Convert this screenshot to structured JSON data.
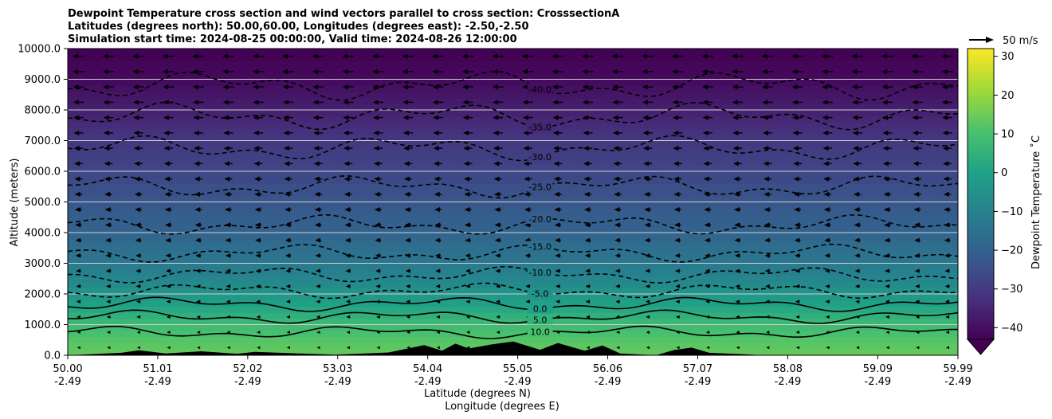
{
  "chart_data": {
    "type": "heatmap",
    "title_lines": [
      "Dewpoint Temperature cross section and wind vectors parallel to cross section: CrosssectionA",
      "Latitudes (degrees north): 50.00,60.00, Longitudes (degrees east): -2.50,-2.50",
      "Simulation start time: 2024-08-25 00:00:00, Valid time: 2024-08-26 12:00:00"
    ],
    "ylabel": "Altitude (meters)",
    "xlabel_lines": [
      "Latitude (degrees N)",
      "Longitude (degrees E)"
    ],
    "ylim": [
      0,
      10000
    ],
    "xlim": [
      50.0,
      59.99
    ],
    "y_ticks": [
      "0.0",
      "1000.0",
      "2000.0",
      "3000.0",
      "4000.0",
      "5000.0",
      "6000.0",
      "7000.0",
      "8000.0",
      "9000.0",
      "10000.0"
    ],
    "x_ticks": [
      {
        "value": 50.0,
        "lat": "50.00",
        "lon": "-2.49"
      },
      {
        "value": 51.01,
        "lat": "51.01",
        "lon": "-2.49"
      },
      {
        "value": 52.02,
        "lat": "52.02",
        "lon": "-2.49"
      },
      {
        "value": 53.03,
        "lat": "53.03",
        "lon": "-2.49"
      },
      {
        "value": 54.04,
        "lat": "54.04",
        "lon": "-2.49"
      },
      {
        "value": 55.05,
        "lat": "55.05",
        "lon": "-2.49"
      },
      {
        "value": 56.06,
        "lat": "56.06",
        "lon": "-2.49"
      },
      {
        "value": 57.07,
        "lat": "57.07",
        "lon": "-2.49"
      },
      {
        "value": 58.08,
        "lat": "58.08",
        "lon": "-2.49"
      },
      {
        "value": 59.09,
        "lat": "59.09",
        "lon": "-2.49"
      },
      {
        "value": 59.99,
        "lat": "59.99",
        "lon": "-2.49"
      }
    ],
    "grid": "horizontal",
    "colorbar": {
      "label": "Dewpoint Temperature ˚C",
      "range": [
        -43,
        32
      ],
      "ticks": [
        "−40",
        "−30",
        "−20",
        "−10",
        "0",
        "10",
        "20",
        "30"
      ],
      "tick_values": [
        -40,
        -30,
        -20,
        -10,
        0,
        10,
        20,
        30
      ],
      "extend": "min",
      "colors": [
        "#440154",
        "#46327e",
        "#365c8d",
        "#277f8e",
        "#1fa187",
        "#4ac16d",
        "#a0da39",
        "#fde725"
      ]
    },
    "quiver_key": {
      "label": "50 m/s",
      "speed": 50
    },
    "wind": {
      "direction": "southward (toward lower latitude)",
      "upper_speed": 25,
      "lower_speed": 5
    },
    "contours": [
      {
        "level": -40.0,
        "style": "dashed",
        "label": "-40.0"
      },
      {
        "level": -35.0,
        "style": "dashed",
        "label": "-35.0"
      },
      {
        "level": -30.0,
        "style": "dashed",
        "label": "-30.0"
      },
      {
        "level": -25.0,
        "style": "dashed",
        "label": "-25.0"
      },
      {
        "level": -20.0,
        "style": "dashed",
        "label": "-20.0"
      },
      {
        "level": -15.0,
        "style": "dashed",
        "label": "-15.0"
      },
      {
        "level": -10.0,
        "style": "dashed",
        "label": "-10.0"
      },
      {
        "level": -5.0,
        "style": "dashed",
        "label": "-5.0"
      },
      {
        "level": 0.0,
        "style": "solid",
        "label": "0.0"
      },
      {
        "level": 5.0,
        "style": "solid",
        "label": "5.0"
      },
      {
        "level": 10.0,
        "style": "solid",
        "label": "10.0"
      }
    ],
    "field_profile": [
      {
        "alt": 0,
        "dewpoint": 14
      },
      {
        "alt": 500,
        "dewpoint": 12
      },
      {
        "alt": 1000,
        "dewpoint": 8
      },
      {
        "alt": 1500,
        "dewpoint": 2
      },
      {
        "alt": 2000,
        "dewpoint": -4
      },
      {
        "alt": 2500,
        "dewpoint": -9
      },
      {
        "alt": 3000,
        "dewpoint": -13
      },
      {
        "alt": 3500,
        "dewpoint": -16
      },
      {
        "alt": 4000,
        "dewpoint": -19
      },
      {
        "alt": 5000,
        "dewpoint": -23
      },
      {
        "alt": 6000,
        "dewpoint": -27
      },
      {
        "alt": 7000,
        "dewpoint": -31
      },
      {
        "alt": 8000,
        "dewpoint": -36
      },
      {
        "alt": 9000,
        "dewpoint": -41
      },
      {
        "alt": 10000,
        "dewpoint": -43
      }
    ],
    "terrain": [
      {
        "lat": 50.0,
        "alt": 0
      },
      {
        "lat": 50.6,
        "alt": 80
      },
      {
        "lat": 50.8,
        "alt": 160
      },
      {
        "lat": 51.1,
        "alt": 60
      },
      {
        "lat": 51.5,
        "alt": 130
      },
      {
        "lat": 51.9,
        "alt": 50
      },
      {
        "lat": 52.1,
        "alt": 110
      },
      {
        "lat": 52.6,
        "alt": 60
      },
      {
        "lat": 53.0,
        "alt": 20
      },
      {
        "lat": 53.6,
        "alt": 90
      },
      {
        "lat": 54.0,
        "alt": 330
      },
      {
        "lat": 54.2,
        "alt": 150
      },
      {
        "lat": 54.35,
        "alt": 380
      },
      {
        "lat": 54.5,
        "alt": 220
      },
      {
        "lat": 54.75,
        "alt": 350
      },
      {
        "lat": 55.0,
        "alt": 450
      },
      {
        "lat": 55.3,
        "alt": 180
      },
      {
        "lat": 55.5,
        "alt": 400
      },
      {
        "lat": 55.8,
        "alt": 150
      },
      {
        "lat": 56.0,
        "alt": 320
      },
      {
        "lat": 56.2,
        "alt": 60
      },
      {
        "lat": 56.6,
        "alt": 0
      },
      {
        "lat": 56.8,
        "alt": 170
      },
      {
        "lat": 57.0,
        "alt": 250
      },
      {
        "lat": 57.2,
        "alt": 80
      },
      {
        "lat": 57.6,
        "alt": 30
      },
      {
        "lat": 57.8,
        "alt": 0
      },
      {
        "lat": 59.99,
        "alt": 0
      }
    ]
  }
}
